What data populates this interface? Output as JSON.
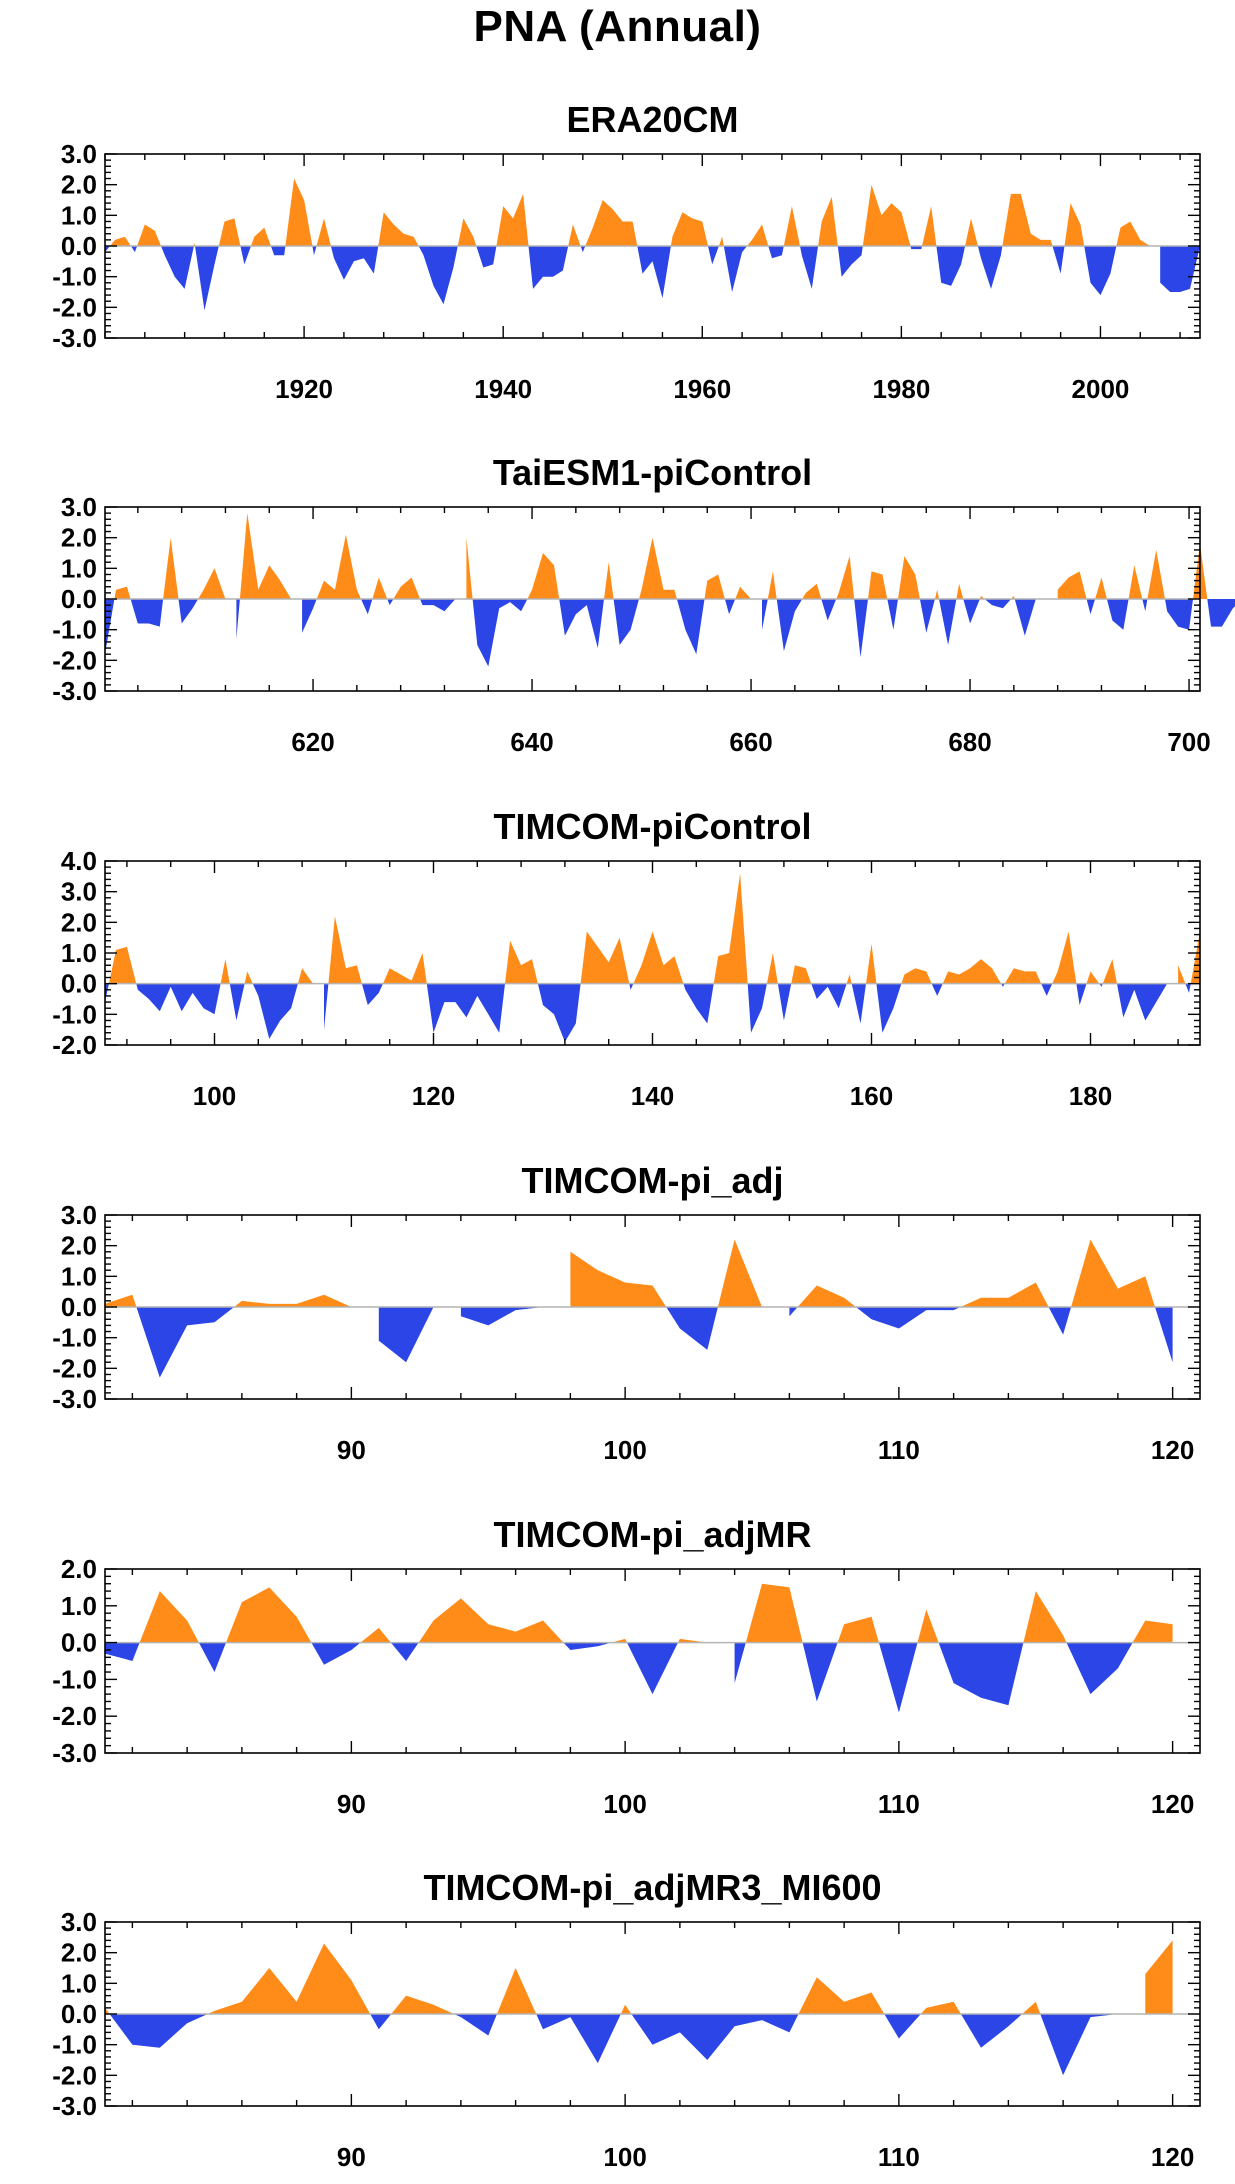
{
  "title": "PNA (Annual)",
  "colors": {
    "positive": "#FF8C19",
    "negative": "#2B45E6",
    "axis": "#000000",
    "zero_line": "#B4B4B4"
  },
  "chart_data": [
    {
      "type": "area",
      "title": "ERA20CM",
      "xlim": [
        1900,
        2010
      ],
      "ylim": [
        -3,
        3
      ],
      "yticks": [
        -3,
        -2,
        -1,
        0,
        1,
        2,
        3
      ],
      "ytick_labels": [
        "-3.0",
        "-2.0",
        "-1.0",
        "0.0",
        "1.0",
        "2.0",
        "3.0"
      ],
      "xticks": [
        1920,
        1940,
        1960,
        1980,
        2000
      ],
      "xtick_labels": [
        "1920",
        "1940",
        "1960",
        "1980",
        "2000"
      ],
      "grid": false,
      "x_start": 1900,
      "values": [
        -0.2,
        0.2,
        0.3,
        -0.2,
        0.7,
        0.5,
        -0.3,
        -1.0,
        -1.4,
        0.1,
        -2.1,
        -0.6,
        0.8,
        0.9,
        -0.6,
        0.3,
        0.6,
        -0.3,
        -0.3,
        2.2,
        1.5,
        -0.3,
        0.9,
        -0.4,
        -1.1,
        -0.5,
        -0.4,
        -0.9,
        1.1,
        0.7,
        0.4,
        0.3,
        -0.3,
        -1.3,
        -1.9,
        -0.7,
        0.9,
        0.3,
        -0.7,
        -0.6,
        1.3,
        0.9,
        1.7,
        -1.4,
        -1.0,
        -1.0,
        -0.8,
        0.7,
        -0.2,
        0.6,
        1.5,
        1.2,
        0.8,
        0.8,
        -0.9,
        -0.5,
        -1.7,
        0.3,
        1.1,
        0.9,
        0.8,
        -0.6,
        0.3,
        -1.5,
        -0.2,
        0.2,
        0.7,
        -0.4,
        -0.3,
        1.3,
        -0.3,
        -1.4,
        0.8,
        1.6,
        -1.0,
        -0.6,
        -0.3,
        2.0,
        1.0,
        1.4,
        1.1,
        -0.1,
        -0.1,
        1.3,
        -1.2,
        -1.3,
        -0.6,
        0.9,
        -0.4,
        -1.4,
        -0.3,
        1.7,
        1.7,
        0.4,
        0.2,
        0.2,
        -0.9,
        1.4,
        0.7,
        -1.2,
        -1.6,
        -0.9,
        0.6,
        0.8,
        0.2,
        0.0,
        -1.2,
        -1.5,
        -1.5,
        -1.4,
        0.0
      ]
    },
    {
      "type": "area",
      "title": "TaiESM1-piControl",
      "xlim": [
        601,
        701
      ],
      "ylim": [
        -3,
        3
      ],
      "yticks": [
        -3,
        -2,
        -1,
        0,
        1,
        2,
        3
      ],
      "ytick_labels": [
        "-3.0",
        "-2.0",
        "-1.0",
        "0.0",
        "1.0",
        "2.0",
        "3.0"
      ],
      "xticks": [
        620,
        640,
        660,
        680,
        700
      ],
      "xtick_labels": [
        "620",
        "640",
        "660",
        "680",
        "700"
      ],
      "grid": false,
      "x_start": 601,
      "values": [
        -1.8,
        0.3,
        0.4,
        -0.8,
        -0.8,
        -0.9,
        2.0,
        -0.8,
        -0.3,
        0.3,
        1.0,
        0.0,
        -1.3,
        2.8,
        0.3,
        1.1,
        0.6,
        0.0,
        -1.1,
        -0.3,
        0.6,
        0.3,
        2.1,
        0.3,
        -0.5,
        0.7,
        -0.2,
        0.4,
        0.7,
        -0.2,
        -0.2,
        -0.4,
        0.0,
        2.0,
        -1.5,
        -2.2,
        -0.3,
        -0.1,
        -0.4,
        0.3,
        1.5,
        1.1,
        -1.2,
        -0.5,
        -0.2,
        -1.6,
        1.2,
        -1.5,
        -1.0,
        0.3,
        2.0,
        0.3,
        0.3,
        -1.0,
        -1.8,
        0.6,
        0.8,
        -0.5,
        0.4,
        0.0,
        -1.0,
        0.9,
        -1.7,
        -0.4,
        0.2,
        0.5,
        -0.7,
        0.2,
        1.4,
        -1.9,
        0.9,
        0.8,
        -1.0,
        1.4,
        0.8,
        -1.1,
        0.3,
        -1.5,
        0.5,
        -0.8,
        0.1,
        -0.2,
        -0.3,
        0.1,
        -1.2,
        0.0,
        0.0,
        0.3,
        0.7,
        0.9,
        -0.5,
        0.7,
        -0.7,
        -1.0,
        1.1,
        -0.4,
        1.6,
        -0.4,
        -0.9,
        -1.0,
        1.8,
        -0.9,
        -0.9,
        -0.3,
        0.0
      ]
    },
    {
      "type": "area",
      "title": "TIMCOM-piControl",
      "xlim": [
        90,
        190
      ],
      "ylim": [
        -2,
        4
      ],
      "yticks": [
        -2,
        -1,
        0,
        1,
        2,
        3,
        4
      ],
      "ytick_labels": [
        "-2.0",
        "-1.0",
        "0.0",
        "1.0",
        "2.0",
        "3.0",
        "4.0"
      ],
      "xticks": [
        100,
        120,
        140,
        160,
        180
      ],
      "xtick_labels": [
        "100",
        "120",
        "140",
        "160",
        "180"
      ],
      "grid": false,
      "x_start": 90,
      "values": [
        -0.6,
        1.1,
        1.2,
        -0.2,
        -0.5,
        -0.9,
        -0.1,
        -0.9,
        -0.3,
        -0.8,
        -1.0,
        0.8,
        -1.2,
        0.4,
        -0.4,
        -1.8,
        -1.2,
        -0.8,
        0.5,
        0.0,
        -1.5,
        2.2,
        0.5,
        0.6,
        -0.7,
        -0.3,
        0.5,
        0.3,
        0.1,
        1.0,
        -1.6,
        -0.6,
        -0.6,
        -1.1,
        -0.4,
        -1.0,
        -1.6,
        1.4,
        0.6,
        0.8,
        -0.7,
        -1.0,
        -1.9,
        -1.3,
        1.7,
        1.2,
        0.7,
        1.5,
        -0.2,
        0.6,
        1.7,
        0.6,
        0.9,
        -0.2,
        -0.8,
        -1.3,
        0.9,
        1.0,
        3.6,
        -1.6,
        -0.8,
        1.0,
        -1.2,
        0.6,
        0.5,
        -0.5,
        -0.1,
        -0.8,
        0.3,
        -1.3,
        1.3,
        -1.6,
        -0.8,
        0.3,
        0.5,
        0.4,
        -0.4,
        0.4,
        0.3,
        0.5,
        0.8,
        0.5,
        -0.1,
        0.5,
        0.4,
        0.4,
        -0.4,
        0.4,
        1.7,
        -0.7,
        0.4,
        -0.1,
        0.8,
        -1.1,
        -0.2,
        -1.2,
        -0.6,
        0.0,
        0.6,
        -0.3,
        1.7
      ]
    },
    {
      "type": "area",
      "title": "TIMCOM-pi_adj",
      "xlim": [
        81,
        121
      ],
      "ylim": [
        -3,
        3
      ],
      "yticks": [
        -3,
        -2,
        -1,
        0,
        1,
        2,
        3
      ],
      "ytick_labels": [
        "-3.0",
        "-2.0",
        "-1.0",
        "0.0",
        "1.0",
        "2.0",
        "3.0"
      ],
      "xticks": [
        90,
        100,
        110,
        120
      ],
      "xtick_labels": [
        "90",
        "100",
        "110",
        "120"
      ],
      "grid": false,
      "x_start": 81,
      "values": [
        0.1,
        0.4,
        -2.3,
        -0.6,
        -0.5,
        0.2,
        0.1,
        0.1,
        0.4,
        0.0,
        -1.1,
        -1.8,
        0.0,
        -0.3,
        -0.6,
        -0.1,
        0.0,
        1.8,
        1.2,
        0.8,
        0.7,
        -0.7,
        -1.4,
        2.2,
        0.0,
        -0.3,
        0.7,
        0.3,
        -0.4,
        -0.7,
        -0.1,
        -0.1,
        0.3,
        0.3,
        0.8,
        -0.9,
        2.2,
        0.6,
        1.0,
        -1.8
      ]
    },
    {
      "type": "area",
      "title": "TIMCOM-pi_adjMR",
      "xlim": [
        81,
        121
      ],
      "ylim": [
        -3,
        2
      ],
      "yticks": [
        -3,
        -2,
        -1,
        0,
        1,
        2
      ],
      "ytick_labels": [
        "-3.0",
        "-2.0",
        "-1.0",
        "0.0",
        "1.0",
        "2.0"
      ],
      "xticks": [
        90,
        100,
        110,
        120
      ],
      "xtick_labels": [
        "90",
        "100",
        "110",
        "120"
      ],
      "grid": false,
      "x_start": 81,
      "values": [
        -0.3,
        -0.5,
        1.4,
        0.6,
        -0.8,
        1.1,
        1.5,
        0.7,
        -0.6,
        -0.2,
        0.4,
        -0.5,
        0.6,
        1.2,
        0.5,
        0.3,
        0.6,
        -0.2,
        -0.1,
        0.1,
        -1.4,
        0.1,
        0.0,
        -1.1,
        1.6,
        1.5,
        -1.6,
        0.5,
        0.7,
        -1.9,
        0.9,
        -1.1,
        -1.5,
        -1.7,
        1.4,
        0.2,
        -1.4,
        -0.7,
        0.6,
        0.5
      ]
    },
    {
      "type": "area",
      "title": "TIMCOM-pi_adjMR3_MI600",
      "xlim": [
        81,
        121
      ],
      "ylim": [
        -3,
        3
      ],
      "yticks": [
        -3,
        -2,
        -1,
        0,
        1,
        2,
        3
      ],
      "ytick_labels": [
        "-3.0",
        "-2.0",
        "-1.0",
        "0.0",
        "1.0",
        "2.0",
        "3.0"
      ],
      "xticks": [
        90,
        100,
        110,
        120
      ],
      "xtick_labels": [
        "90",
        "100",
        "110",
        "120"
      ],
      "grid": false,
      "x_start": 81,
      "values": [
        0.2,
        -1.0,
        -1.1,
        -0.3,
        0.1,
        0.4,
        1.5,
        0.4,
        2.3,
        1.1,
        -0.5,
        0.6,
        0.3,
        -0.1,
        -0.7,
        1.5,
        -0.5,
        -0.1,
        -1.6,
        0.3,
        -1.0,
        -0.6,
        -1.5,
        -0.4,
        -0.2,
        -0.6,
        1.2,
        0.4,
        0.7,
        -0.8,
        0.2,
        0.4,
        -1.1,
        -0.4,
        0.4,
        -2.0,
        -0.1,
        0.0,
        1.3,
        2.4
      ]
    }
  ]
}
